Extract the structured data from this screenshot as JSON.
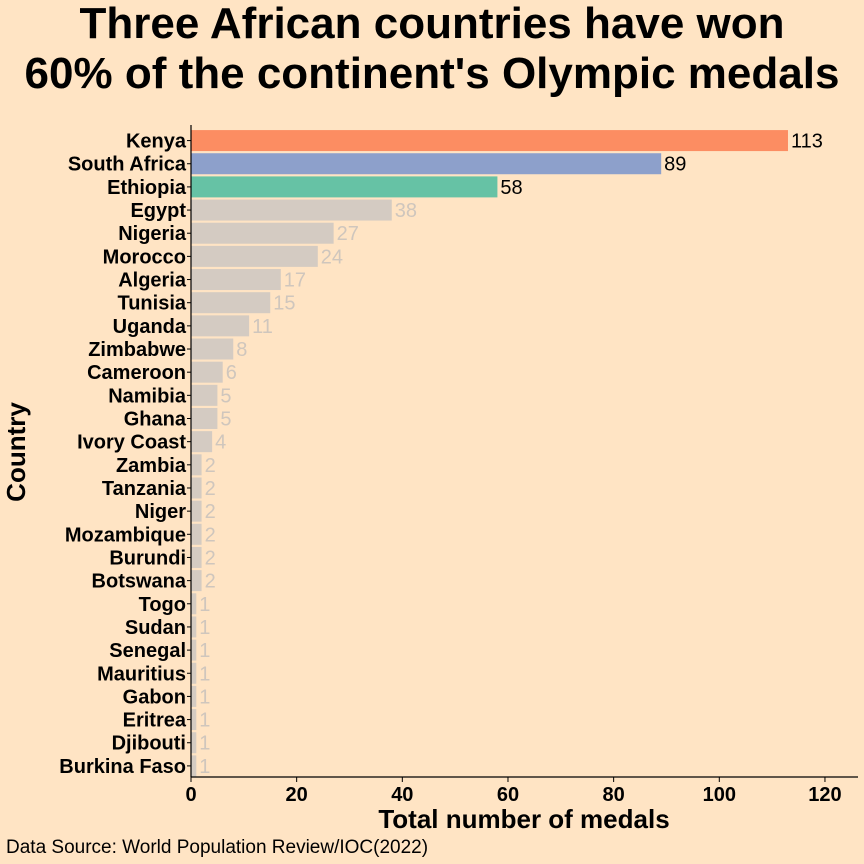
{
  "title_lines": [
    "Three African countries have won",
    "60% of the continent's Olympic medals"
  ],
  "caption": "Data Source: World Population Review/IOC(2022)",
  "colors": {
    "background": "#ffe4c4",
    "kenya": "#fc8d62",
    "south_africa": "#8da0cb",
    "ethiopia": "#66c2a5",
    "others": "#d4cbc2",
    "others_label": "#cfc6bd",
    "text": "#000000"
  },
  "chart_data": {
    "type": "bar",
    "orientation": "horizontal",
    "title": "Three African countries have won 60% of the continent's Olympic medals",
    "xlabel": "Total number of medals",
    "ylabel": "Country",
    "xlim": [
      0,
      125
    ],
    "xticks": [
      0,
      20,
      40,
      60,
      80,
      100,
      120
    ],
    "grid": false,
    "legend": "none",
    "categories": [
      "Kenya",
      "South Africa",
      "Ethiopia",
      "Egypt",
      "Nigeria",
      "Morocco",
      "Algeria",
      "Tunisia",
      "Uganda",
      "Zimbabwe",
      "Cameroon",
      "Namibia",
      "Ghana",
      "Ivory Coast",
      "Zambia",
      "Tanzania",
      "Niger",
      "Mozambique",
      "Burundi",
      "Botswana",
      "Togo",
      "Sudan",
      "Senegal",
      "Mauritius",
      "Gabon",
      "Eritrea",
      "Djibouti",
      "Burkina Faso"
    ],
    "values": [
      113,
      89,
      58,
      38,
      27,
      24,
      17,
      15,
      11,
      8,
      6,
      5,
      5,
      4,
      2,
      2,
      2,
      2,
      2,
      2,
      1,
      1,
      1,
      1,
      1,
      1,
      1,
      1
    ],
    "highlighted": [
      "Kenya",
      "South Africa",
      "Ethiopia"
    ]
  }
}
